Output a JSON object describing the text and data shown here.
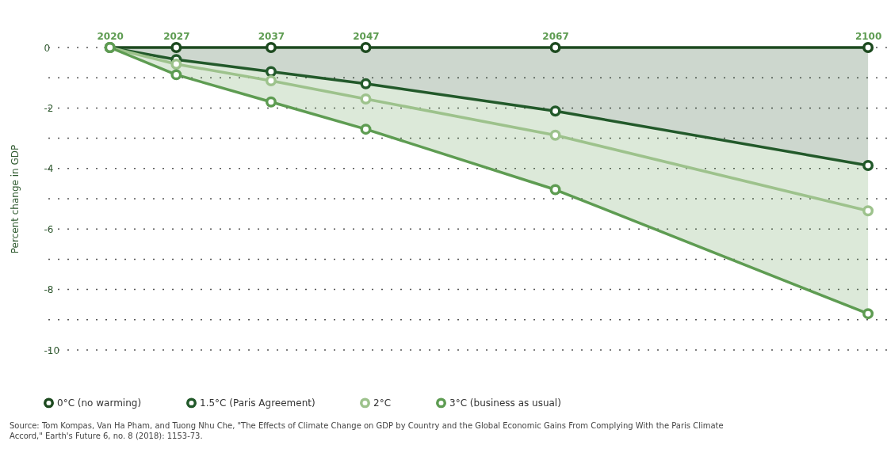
{
  "chart_data": {
    "type": "line",
    "ylabel": "Percent change in GDP",
    "x": [
      2020,
      2027,
      2037,
      2047,
      2067,
      2100
    ],
    "xlim": [
      2013,
      2102
    ],
    "xticks": [
      2020,
      2027,
      2037,
      2047,
      2067,
      2100
    ],
    "ylim": [
      -10,
      0
    ],
    "yticks": [
      0,
      {
        "value": -1,
        "label": null
      },
      -2,
      {
        "value": -3,
        "label": null
      },
      -4,
      {
        "value": -5,
        "label": null
      },
      -6,
      {
        "value": -7,
        "label": null
      },
      -8,
      {
        "value": -9,
        "label": null
      },
      -10
    ],
    "grid": "y",
    "marker": "circle",
    "legend": "bottom",
    "series": [
      {
        "name": "0°C (no warming)",
        "color": "#1d4a1f",
        "values": [
          0,
          0,
          0,
          0,
          0,
          0
        ],
        "lower": [
          0,
          -0.4,
          -0.8,
          -1.2,
          -2.1,
          -3.9
        ],
        "upper": [
          0,
          0,
          0,
          0,
          0,
          0
        ]
      },
      {
        "name": "1.5°C (Paris Agreement)",
        "color": "#22592a",
        "values": [
          0,
          -0.4,
          -0.8,
          -1.2,
          -2.1,
          -3.9
        ]
      },
      {
        "name": "2°C",
        "color": "#9dc28c",
        "values": [
          0,
          -0.55,
          -1.1,
          -1.7,
          -2.9,
          -5.4
        ]
      },
      {
        "name": "3°C (business as usual)",
        "color": "#5e9c52",
        "values": [
          0,
          -0.9,
          -1.8,
          -2.7,
          -4.7,
          -8.8
        ],
        "lower": [
          0,
          -0.9,
          -1.8,
          -2.7,
          -4.7,
          -8.8
        ],
        "upper": [
          0,
          -0.4,
          -0.8,
          -1.2,
          -2.1,
          -3.9
        ]
      }
    ],
    "annotations": [
      "Source: Tom Kompas, Van Ha Pham, and Tuong Nhu Che, \"The Effects of Climate Change on GDP by Country and the Global Economic Gains From Complying With the Paris Climate Accord,\" Earth's Future 6, no. 8 (2018): 1153-73."
    ]
  }
}
